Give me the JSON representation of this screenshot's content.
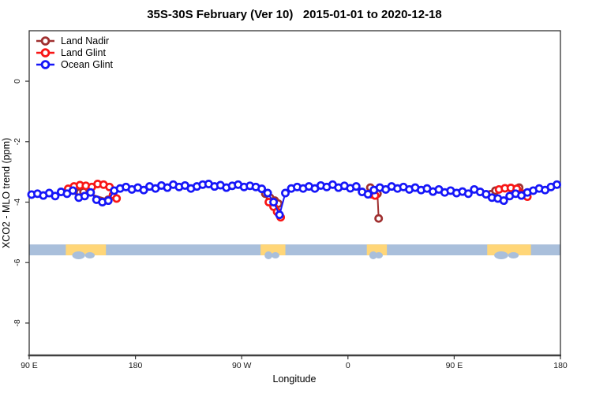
{
  "title": "35S-30S February (Ver 10)   2015-01-01 to 2020-12-18",
  "legend": {
    "items": [
      {
        "label": "Land Nadir",
        "color": "#A03030"
      },
      {
        "label": "Land Glint",
        "color": "#F81616"
      },
      {
        "label": "Ocean Glint",
        "color": "#1616F8"
      }
    ]
  },
  "axes": {
    "x": {
      "title": "Longitude",
      "range_deg_along_axis": [
        0,
        450
      ],
      "ticks": [
        {
          "pos": 0,
          "label": "90 E"
        },
        {
          "pos": 90,
          "label": "180"
        },
        {
          "pos": 180,
          "label": "90 W"
        },
        {
          "pos": 270,
          "label": "0"
        },
        {
          "pos": 360,
          "label": "90 E"
        },
        {
          "pos": 450,
          "label": "180"
        }
      ]
    },
    "y": {
      "title": "XCO2 - MLO trend (ppm)",
      "range": [
        1.67,
        -9.07
      ],
      "ticks": [
        0,
        -2,
        -4,
        -6,
        -8
      ]
    }
  },
  "chart_data": {
    "type": "scatter",
    "title": "35S-30S February (Ver 10)   2015-01-01 to 2020-12-18",
    "xlabel": "Longitude",
    "ylabel": "XCO2 - MLO trend (ppm)",
    "x_unit": "degrees eastward along axis starting at 90E (axis wraps: 90E,180,90W,0,90E,180)",
    "y_unit": "ppm",
    "marker": "open-circle-with-line",
    "series": [
      {
        "name": "Land Nadir",
        "color": "#A03030",
        "clusters": [
          [
            [
              39,
              -3.62
            ],
            [
              43,
              -3.68
            ],
            [
              46,
              -3.66
            ],
            [
              67,
              -3.92
            ]
          ],
          [
            [
              200,
              -3.72
            ],
            [
              204,
              -3.85
            ],
            [
              208,
              -3.95
            ],
            [
              211,
              -4.05
            ]
          ],
          [
            [
              289,
              -3.52
            ],
            [
              295,
              -3.72
            ],
            [
              296,
              -4.54
            ]
          ],
          [
            [
              391,
              -3.74
            ],
            [
              395,
              -3.62
            ],
            [
              415,
              -3.52
            ]
          ]
        ]
      },
      {
        "name": "Land Glint",
        "color": "#F81616",
        "clusters": [
          [
            [
              33,
              -3.56
            ],
            [
              38,
              -3.48
            ],
            [
              43,
              -3.44
            ],
            [
              48,
              -3.46
            ],
            [
              53,
              -3.5
            ],
            [
              58,
              -3.4
            ],
            [
              63,
              -3.42
            ],
            [
              68,
              -3.5
            ],
            [
              71,
              -3.76
            ],
            [
              74,
              -3.88
            ]
          ],
          [
            [
              203,
              -4.0
            ],
            [
              207,
              -4.15
            ],
            [
              210,
              -4.32
            ],
            [
              213,
              -4.5
            ]
          ],
          [
            [
              290,
              -3.74
            ],
            [
              293,
              -3.78
            ]
          ],
          [
            [
              398,
              -3.58
            ],
            [
              403,
              -3.54
            ],
            [
              408,
              -3.53
            ],
            [
              413,
              -3.56
            ],
            [
              418,
              -3.72
            ],
            [
              422,
              -3.82
            ]
          ]
        ]
      },
      {
        "name": "Ocean Glint",
        "color": "#1616F8",
        "clusters": [
          [
            [
              2,
              -3.75
            ],
            [
              7,
              -3.72
            ],
            [
              12,
              -3.78
            ],
            [
              17,
              -3.7
            ],
            [
              22,
              -3.8
            ],
            [
              27,
              -3.66
            ],
            [
              32,
              -3.72
            ],
            [
              37,
              -3.62
            ],
            [
              42,
              -3.85
            ],
            [
              47,
              -3.8
            ],
            [
              52,
              -3.68
            ],
            [
              57,
              -3.92
            ],
            [
              62,
              -4.0
            ],
            [
              67,
              -3.95
            ],
            [
              72,
              -3.62
            ],
            [
              77,
              -3.55
            ],
            [
              82,
              -3.5
            ],
            [
              87,
              -3.58
            ],
            [
              92,
              -3.52
            ],
            [
              97,
              -3.6
            ],
            [
              102,
              -3.48
            ],
            [
              107,
              -3.55
            ],
            [
              112,
              -3.45
            ],
            [
              117,
              -3.52
            ],
            [
              122,
              -3.42
            ],
            [
              127,
              -3.5
            ],
            [
              132,
              -3.45
            ],
            [
              137,
              -3.55
            ],
            [
              142,
              -3.48
            ],
            [
              147,
              -3.42
            ],
            [
              152,
              -3.4
            ],
            [
              157,
              -3.48
            ],
            [
              162,
              -3.44
            ],
            [
              167,
              -3.52
            ],
            [
              172,
              -3.46
            ],
            [
              177,
              -3.42
            ],
            [
              182,
              -3.5
            ],
            [
              187,
              -3.46
            ],
            [
              192,
              -3.5
            ],
            [
              197,
              -3.56
            ],
            [
              202,
              -3.7
            ],
            [
              207,
              -4.0
            ],
            [
              212,
              -4.42
            ],
            [
              217,
              -3.7
            ],
            [
              222,
              -3.55
            ],
            [
              227,
              -3.5
            ],
            [
              232,
              -3.55
            ],
            [
              237,
              -3.48
            ],
            [
              242,
              -3.55
            ],
            [
              247,
              -3.45
            ],
            [
              252,
              -3.5
            ],
            [
              257,
              -3.42
            ],
            [
              262,
              -3.52
            ],
            [
              267,
              -3.46
            ],
            [
              272,
              -3.54
            ],
            [
              277,
              -3.48
            ],
            [
              282,
              -3.66
            ],
            [
              287,
              -3.74
            ],
            [
              292,
              -3.6
            ],
            [
              297,
              -3.52
            ],
            [
              302,
              -3.58
            ],
            [
              307,
              -3.48
            ],
            [
              312,
              -3.55
            ],
            [
              317,
              -3.5
            ],
            [
              322,
              -3.58
            ],
            [
              327,
              -3.52
            ],
            [
              332,
              -3.6
            ],
            [
              337,
              -3.55
            ],
            [
              342,
              -3.65
            ],
            [
              347,
              -3.58
            ],
            [
              352,
              -3.68
            ],
            [
              357,
              -3.62
            ],
            [
              362,
              -3.7
            ],
            [
              367,
              -3.65
            ],
            [
              372,
              -3.72
            ],
            [
              377,
              -3.58
            ],
            [
              382,
              -3.66
            ],
            [
              387,
              -3.74
            ],
            [
              392,
              -3.85
            ],
            [
              397,
              -3.88
            ],
            [
              402,
              -3.95
            ],
            [
              407,
              -3.8
            ],
            [
              412,
              -3.72
            ],
            [
              417,
              -3.78
            ],
            [
              422,
              -3.68
            ],
            [
              427,
              -3.62
            ],
            [
              432,
              -3.55
            ],
            [
              437,
              -3.6
            ],
            [
              442,
              -3.5
            ],
            [
              447,
              -3.42
            ]
          ]
        ]
      }
    ],
    "land_band": {
      "description": "latitude-strip map: ocean vs land along longitude",
      "ocean_fill": "#A9BFDB",
      "land_fill": "#FFD678",
      "y_range_ppm": [
        -5.4,
        -5.76
      ],
      "patches": [
        {
          "name": "australia",
          "from_deg": 31,
          "to_deg": 65
        },
        {
          "name": "south-america",
          "from_deg": 196,
          "to_deg": 217
        },
        {
          "name": "africa",
          "from_deg": 286,
          "to_deg": 303
        },
        {
          "name": "australia-wrap",
          "from_deg": 388,
          "to_deg": 425
        }
      ]
    },
    "grid": false,
    "legend_position": "top-left-inside"
  },
  "style": {
    "box_stroke": "#333333",
    "axis_bottom_stroke": "#404040",
    "marker_fill": "#ffffff"
  }
}
